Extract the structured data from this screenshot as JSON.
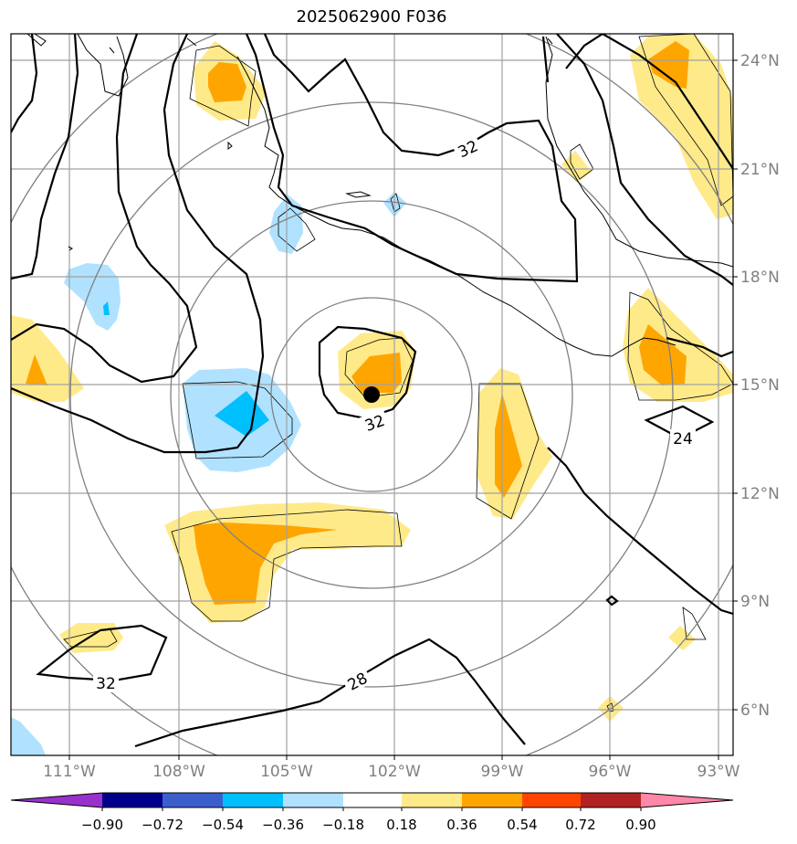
{
  "title": "2025062900 F036",
  "lon_labels": [
    "111°W",
    "108°W",
    "105°W",
    "102°W",
    "99°W",
    "96°W",
    "93°W"
  ],
  "lat_labels": [
    "24°N",
    "21°N",
    "18°N",
    "15°N",
    "12°N",
    "9°N",
    "6°N"
  ],
  "contour_labels": {
    "c32_north": "32",
    "c32_center": "32",
    "c32_southwest": "32",
    "c28": "28",
    "c24": "24"
  },
  "colorbar": {
    "labels": [
      "−0.90",
      "−0.72",
      "−0.54",
      "−0.36",
      "−0.18",
      "0.18",
      "0.36",
      "0.54",
      "0.72",
      "0.90"
    ],
    "colors": {
      "under": "#9932cc",
      "c1": "#00008b",
      "c2": "#3a5fcd",
      "c3": "#00bfff",
      "c4": "#b0e2ff",
      "c5": "#ffffff",
      "c6": "#ffea8a",
      "c7": "#ffa500",
      "c8": "#ff4500",
      "c9": "#b22222",
      "over": "#ff88aa"
    }
  },
  "storm_center": {
    "lon": -102.6,
    "lat": 14.7
  },
  "colors": {
    "light_blue": "#b0e2ff",
    "blue": "#00bfff",
    "light_yellow": "#ffea8a",
    "orange": "#ffa500",
    "grid": "#a0a0a0",
    "range_rings": "#808080"
  }
}
